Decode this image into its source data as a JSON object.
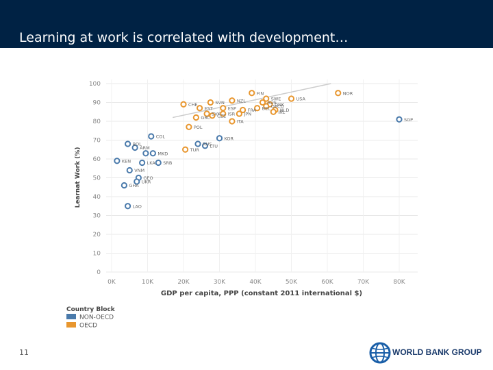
{
  "slide": {
    "title": "Learning at work is correlated with development…",
    "page_number": "11",
    "logo_text": "WORLD BANK GROUP",
    "header_color": "#002244"
  },
  "chart_data": {
    "type": "scatter",
    "title": "",
    "xlabel": "GDP per capita, PPP (constant 2011 international $)",
    "ylabel": "Learnat Work (%)",
    "xlim": [
      0,
      85000
    ],
    "ylim": [
      0,
      100
    ],
    "x_ticks": [
      0,
      10000,
      20000,
      30000,
      40000,
      50000,
      60000,
      70000,
      80000
    ],
    "x_tick_labels": [
      "0K",
      "10K",
      "20K",
      "30K",
      "40K",
      "50K",
      "60K",
      "70K",
      "80K"
    ],
    "y_ticks": [
      0,
      10,
      20,
      30,
      40,
      50,
      60,
      70,
      80,
      90,
      100
    ],
    "y_tick_labels": [
      "0",
      "10",
      "20",
      "30",
      "40",
      "50",
      "60",
      "70",
      "80",
      "90",
      "100"
    ],
    "grid": true,
    "trendline": {
      "x": [
        17000,
        61000
      ],
      "y": [
        82,
        100
      ],
      "color": "#cccccc"
    },
    "legend": {
      "title": "Country Block",
      "placement": "bottom-left",
      "entries": [
        {
          "name": "NON-OECD",
          "color": "#4a7aab"
        },
        {
          "name": "OECD",
          "color": "#e8962e"
        }
      ]
    },
    "series": [
      {
        "name": "NON-OECD",
        "color": "#4a7aab",
        "points": [
          {
            "label": "SGP",
            "x": 80000,
            "y": 81
          },
          {
            "label": "COL",
            "x": 11000,
            "y": 72
          },
          {
            "label": "BOL",
            "x": 4500,
            "y": 68
          },
          {
            "label": "ARM",
            "x": 6500,
            "y": 66
          },
          {
            "label": "MKD",
            "x": 11500,
            "y": 63
          },
          {
            "label": "KEN",
            "x": 1500,
            "y": 59
          },
          {
            "label": "LKA",
            "x": 8500,
            "y": 58
          },
          {
            "label": "SRB",
            "x": 13000,
            "y": 58
          },
          {
            "label": "VNM",
            "x": 5000,
            "y": 54
          },
          {
            "label": "GEO",
            "x": 7500,
            "y": 50
          },
          {
            "label": "UKR",
            "x": 7000,
            "y": 48
          },
          {
            "label": "GHA",
            "x": 3500,
            "y": 46
          },
          {
            "label": "LAO",
            "x": 4500,
            "y": 35
          },
          {
            "label": "KOR",
            "x": 30000,
            "y": 71
          },
          {
            "label": "RUS",
            "x": 24000,
            "y": 68
          },
          {
            "label": "LTU",
            "x": 26000,
            "y": 67
          },
          {
            "label": "",
            "x": 9500,
            "y": 63
          }
        ]
      },
      {
        "name": "OECD",
        "color": "#e8962e",
        "points": [
          {
            "label": "NOR",
            "x": 63000,
            "y": 95
          },
          {
            "label": "FIN",
            "x": 39000,
            "y": 95
          },
          {
            "label": "USA",
            "x": 50000,
            "y": 92
          },
          {
            "label": "SWE",
            "x": 43000,
            "y": 92
          },
          {
            "label": "NZL",
            "x": 33500,
            "y": 91
          },
          {
            "label": "SVN",
            "x": 27500,
            "y": 90
          },
          {
            "label": "CHE",
            "x": 20000,
            "y": 89
          },
          {
            "label": "AUS",
            "x": 42000,
            "y": 90
          },
          {
            "label": "DNK",
            "x": 44000,
            "y": 89
          },
          {
            "label": "OECD",
            "x": 43000,
            "y": 88
          },
          {
            "label": "EST",
            "x": 24500,
            "y": 87
          },
          {
            "label": "ESP",
            "x": 31000,
            "y": 87
          },
          {
            "label": "FRA",
            "x": 36500,
            "y": 86
          },
          {
            "label": "BEL",
            "x": 40500,
            "y": 87
          },
          {
            "label": "NLD",
            "x": 45500,
            "y": 86
          },
          {
            "label": "ISR",
            "x": 31000,
            "y": 84
          },
          {
            "label": "JPN",
            "x": 35500,
            "y": 84
          },
          {
            "label": "IRL",
            "x": 45000,
            "y": 85
          },
          {
            "label": "CZE",
            "x": 28000,
            "y": 83
          },
          {
            "label": "SVK",
            "x": 26500,
            "y": 84
          },
          {
            "label": "GRC",
            "x": 23500,
            "y": 82
          },
          {
            "label": "ITA",
            "x": 33500,
            "y": 80
          },
          {
            "label": "POL",
            "x": 21500,
            "y": 77
          },
          {
            "label": "TUR",
            "x": 20500,
            "y": 65
          }
        ]
      }
    ]
  }
}
